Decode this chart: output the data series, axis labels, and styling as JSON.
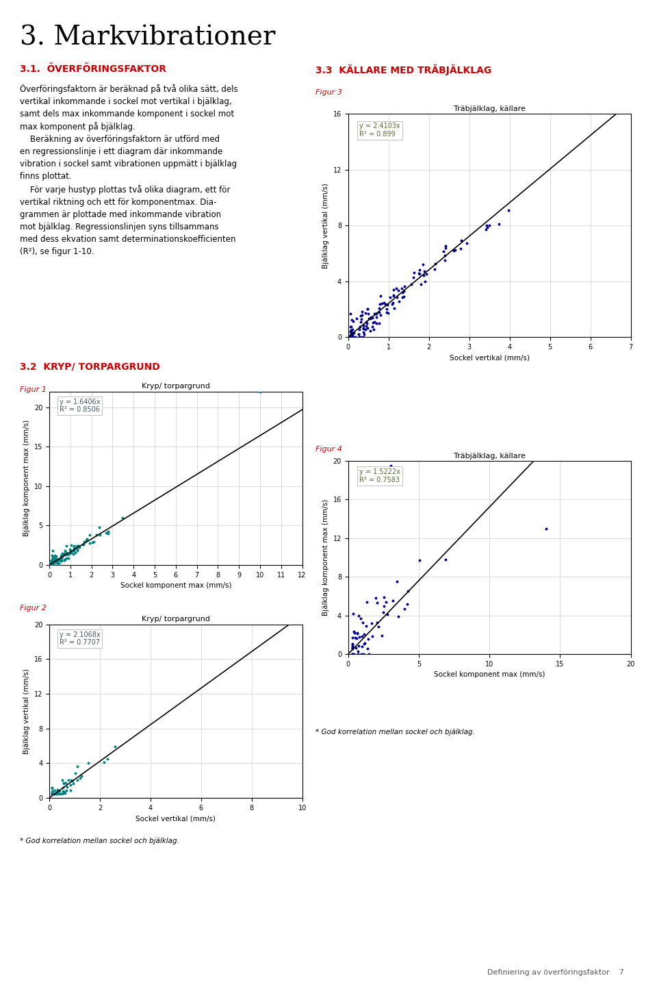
{
  "page_title": "3. Markvibrationer",
  "section_31_title": "3.1.  ÖVERFÖRINGSFAKTOR",
  "section_31_text": [
    "Överföringsfaktorn är beräknad på två olika sätt, dels",
    "vertikal inkommande i sockel mot vertikal i bjälklag,",
    "samt dels max inkommande komponent i sockel mot",
    "max komponent på bjälklag.",
    "    Beräkning av överföringsfaktorn är utförd med",
    "en regressionslinje i ett diagram där inkommande",
    "vibration i sockel samt vibrationen uppmätt i bjälklag",
    "finns plottat.",
    "    För varje hustyp plottas två olika diagram, ett för",
    "vertikal riktning och ett för komponentmax. Dia-",
    "grammen är plottade med inkommande vibration",
    "mot bjälklag. Regressionslinjen syns tillsammans",
    "med dess ekvation samt determinationskoefficienten",
    "(R²), se figur 1-10."
  ],
  "section_32_title": "3.2  KRYP/ TORPARGRUND",
  "section_33_title": "3.3  KÄLLARE MED TRÄBJÄLKLAG",
  "fig1_label": "Figur 1",
  "fig2_label": "Figur 2",
  "fig3_label": "Figur 3",
  "fig4_label": "Figur 4",
  "fig1_title": "Kryp/ torpargrund",
  "fig2_title": "Kryp/ torpargrund",
  "fig3_title": "Träbjälklag, källare",
  "fig4_title": "Träbjälklag, källare",
  "fig1_eq": "y = 1.6406x\nR² = 0.8506",
  "fig2_eq": "y = 2.1068x\nR² = 0.7707",
  "fig3_eq": "y = 2.4103x\nR² = 0.899",
  "fig4_eq": "y = 1.5222x\nR² = 0.7583",
  "fig1_xlabel": "Sockel komponent max (mm/s)",
  "fig1_ylabel": "Bjälklag komponent max (mm/s)",
  "fig2_xlabel": "Sockel vertikal (mm/s)",
  "fig2_ylabel": "Bjälklag vertikal (mm/s)",
  "fig3_xlabel": "Sockel vertikal (mm/s)",
  "fig3_ylabel": "Bjälklag vertikal (mm/s)",
  "fig4_xlabel": "Sockel komponent max (mm/s)",
  "fig4_ylabel": "Bjälklag komponent max (mm/s)",
  "fig1_xlim": [
    0,
    12
  ],
  "fig1_ylim": [
    0,
    22
  ],
  "fig2_xlim": [
    0,
    10
  ],
  "fig2_ylim": [
    0,
    20
  ],
  "fig3_xlim": [
    0,
    7
  ],
  "fig3_ylim": [
    0,
    16
  ],
  "fig4_xlim": [
    0,
    20
  ],
  "fig4_ylim": [
    0,
    20
  ],
  "fig1_xticks": [
    0,
    1,
    2,
    3,
    4,
    5,
    6,
    7,
    8,
    9,
    10,
    11,
    12
  ],
  "fig1_yticks": [
    0,
    5,
    10,
    15,
    20
  ],
  "fig2_xticks": [
    0,
    2,
    4,
    6,
    8,
    10
  ],
  "fig2_yticks": [
    0,
    4,
    8,
    12,
    16,
    20
  ],
  "fig3_xticks": [
    0,
    1,
    2,
    3,
    4,
    5,
    6,
    7
  ],
  "fig3_yticks": [
    0,
    4,
    8,
    12,
    16
  ],
  "fig4_xticks": [
    0,
    5,
    10,
    15,
    20
  ],
  "fig4_yticks": [
    0,
    4,
    8,
    12,
    16,
    20
  ],
  "teal_color": "#008080",
  "blue_color": "#0000CD",
  "dot_color_12": "#008080",
  "dot_color_34": "#00008B",
  "line_color": "#000000",
  "red_heading": "#CC0000",
  "footnote_left": "* God korrelation mellan sockel och bjälklag.",
  "footnote_right": "* God korrelation mellan sockel och bjälklag.",
  "page_number": "7",
  "footer_text": "Definiering av överföringsfaktor"
}
